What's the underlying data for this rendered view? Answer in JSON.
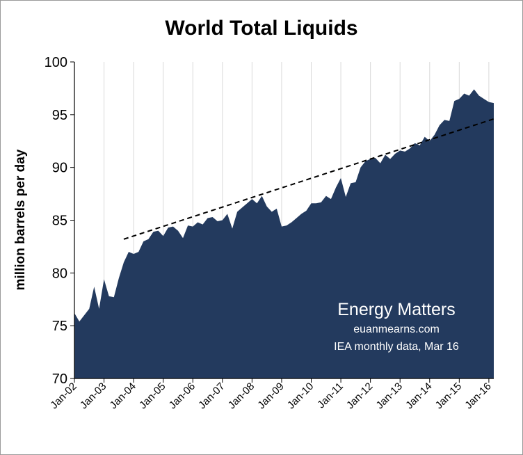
{
  "chart_data": {
    "type": "area",
    "title": "World Total Liquids",
    "xlabel": "",
    "ylabel": "million barrels per day",
    "ylim": [
      70,
      100
    ],
    "yticks": [
      70,
      75,
      80,
      85,
      90,
      95,
      100
    ],
    "xlim": [
      "Jan-02",
      "Mar-16"
    ],
    "x_tick_labels": [
      "Jan-02",
      "Jan-03",
      "Jan-04",
      "Jan-05",
      "Jan-06",
      "Jan-07",
      "Jan-08",
      "Jan-09",
      "Jan-10",
      "Jan-11",
      "Jan-12",
      "Jan-13",
      "Jan-14",
      "Jan-15",
      "Jan-16"
    ],
    "grid": {
      "vertical": true,
      "horizontal": false
    },
    "area_color": "#233a5e",
    "grid_color": "#d9d9d9",
    "series": [
      {
        "x": [
          "Jan-02",
          "Mar-02",
          "May-02",
          "Jul-02",
          "Sep-02",
          "Nov-02",
          "Jan-03",
          "Mar-03",
          "May-03",
          "Jul-03",
          "Sep-03",
          "Nov-03",
          "Jan-04",
          "Mar-04",
          "May-04",
          "Jul-04",
          "Sep-04",
          "Nov-04",
          "Jan-05",
          "Mar-05",
          "May-05",
          "Jul-05",
          "Sep-05",
          "Nov-05",
          "Jan-06",
          "Mar-06",
          "May-06",
          "Jul-06",
          "Sep-06",
          "Nov-06",
          "Jan-07",
          "Mar-07",
          "May-07",
          "Jul-07",
          "Sep-07",
          "Nov-07",
          "Jan-08",
          "Mar-08",
          "May-08",
          "Jul-08",
          "Sep-08",
          "Nov-08",
          "Jan-09",
          "Mar-09",
          "May-09",
          "Jul-09",
          "Sep-09",
          "Nov-09",
          "Jan-10",
          "Mar-10",
          "May-10",
          "Jul-10",
          "Sep-10",
          "Nov-10",
          "Jan-11",
          "Mar-11",
          "May-11",
          "Jul-11",
          "Sep-11",
          "Nov-11",
          "Jan-12",
          "Mar-12",
          "May-12",
          "Jul-12",
          "Sep-12",
          "Nov-12",
          "Jan-13",
          "Mar-13",
          "May-13",
          "Jul-13",
          "Sep-13",
          "Nov-13",
          "Jan-14",
          "Mar-14",
          "May-14",
          "Jul-14",
          "Sep-14",
          "Nov-14",
          "Jan-15",
          "Mar-15",
          "May-15",
          "Jul-15",
          "Sep-15",
          "Nov-15",
          "Jan-16",
          "Mar-16"
        ],
        "values": [
          76.2,
          75.4,
          76.0,
          76.6,
          78.7,
          76.6,
          79.4,
          77.8,
          77.7,
          79.5,
          81.0,
          82.0,
          81.8,
          82.0,
          83.0,
          83.2,
          83.9,
          84.0,
          83.5,
          84.3,
          84.4,
          84.0,
          83.3,
          84.5,
          84.4,
          84.8,
          84.6,
          85.2,
          85.3,
          84.9,
          85.0,
          85.6,
          84.2,
          85.8,
          86.2,
          86.6,
          87.0,
          86.6,
          87.3,
          86.3,
          85.8,
          86.1,
          84.4,
          84.5,
          84.8,
          85.2,
          85.6,
          85.9,
          86.6,
          86.6,
          86.7,
          87.3,
          87.0,
          88.1,
          89.0,
          87.2,
          88.5,
          88.6,
          90.0,
          90.6,
          90.8,
          90.9,
          90.4,
          91.2,
          90.8,
          91.3,
          91.6,
          91.5,
          91.8,
          92.3,
          92.1,
          92.9,
          92.5,
          93.1,
          94.0,
          94.5,
          94.4,
          96.3,
          96.5,
          97.0,
          96.8,
          97.4,
          96.8,
          96.5,
          96.2,
          96.1
        ]
      }
    ],
    "trendline": {
      "x": [
        "Sep-03",
        "Mar-16"
      ],
      "y": [
        83.2,
        94.6
      ],
      "style": "dashed",
      "color": "#000000"
    }
  },
  "watermark": {
    "line1": "Energy Matters",
    "line2": "euanmearns.com",
    "line3": "IEA monthly data, Mar 16"
  }
}
